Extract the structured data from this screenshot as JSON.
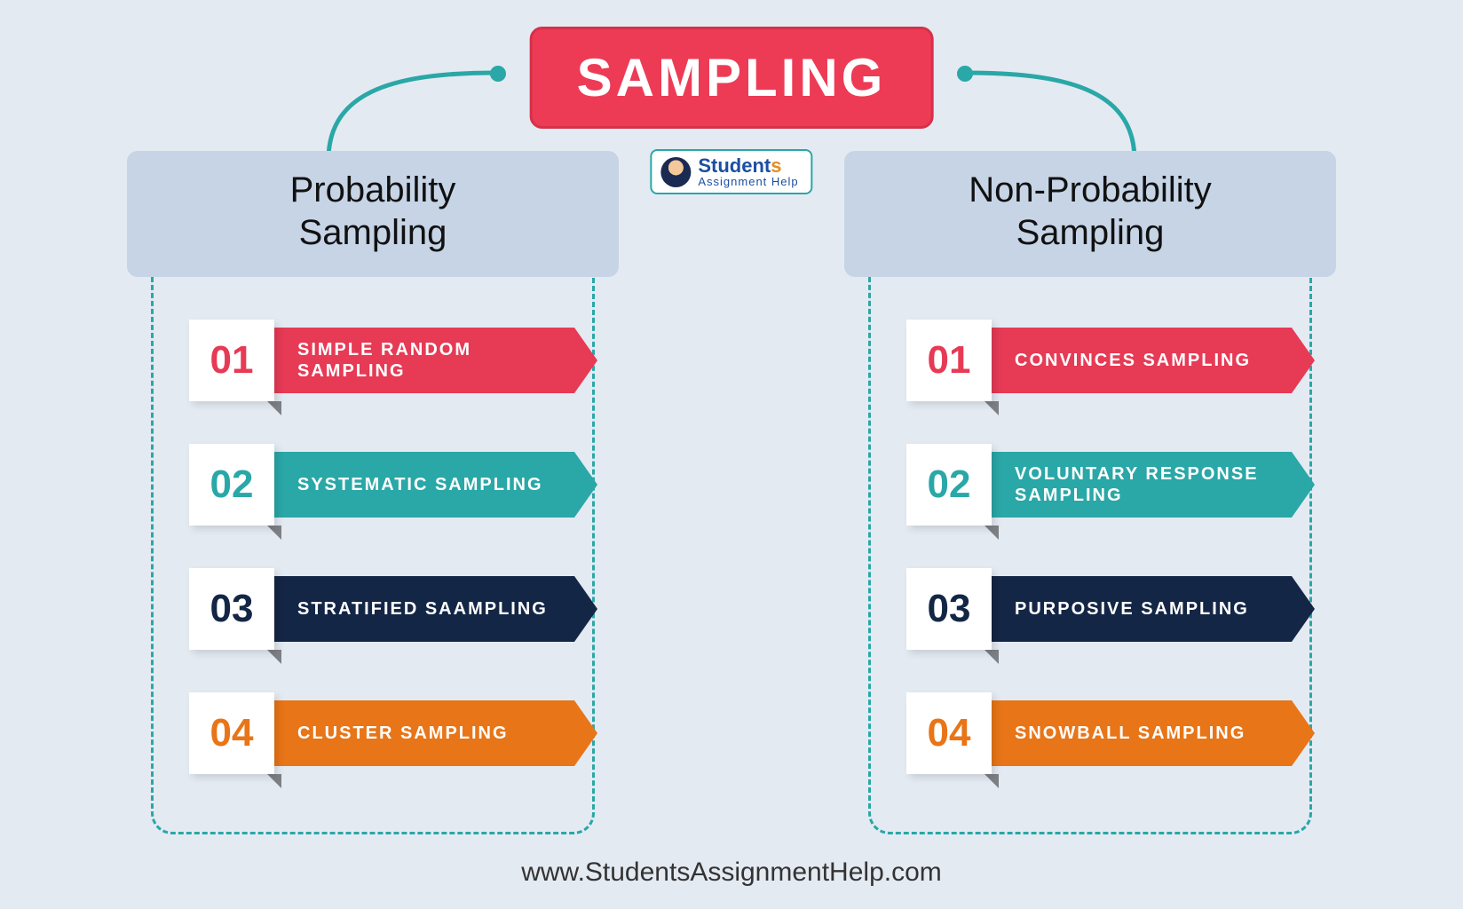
{
  "title": "SAMPLING",
  "logo": {
    "line1_a": "Student",
    "line1_b": "s",
    "line2": "Assignment Help"
  },
  "footer": "www.StudentsAssignmentHelp.com",
  "colors": {
    "title_bg": "#ed3b56",
    "arrow": "#2aa7a7",
    "header_bg": "#c6d4e6",
    "items": [
      "#e63a55",
      "#2aa7a7",
      "#142645",
      "#e87517"
    ]
  },
  "columns": [
    {
      "header": "Probability\nSampling",
      "items": [
        {
          "num": "01",
          "label": "SIMPLE RANDOM SAMPLING"
        },
        {
          "num": "02",
          "label": "SYSTEMATIC SAMPLING"
        },
        {
          "num": "03",
          "label": "STRATIFIED SAAMPLING"
        },
        {
          "num": "04",
          "label": "CLUSTER SAMPLING"
        }
      ]
    },
    {
      "header": "Non-Probability\nSampling",
      "items": [
        {
          "num": "01",
          "label": "CONVINCES SAMPLING"
        },
        {
          "num": "02",
          "label": "VOLUNTARY RESPONSE SAMPLING"
        },
        {
          "num": "03",
          "label": "PURPOSIVE SAMPLING"
        },
        {
          "num": "04",
          "label": "SNOWBALL SAMPLING"
        }
      ]
    }
  ]
}
